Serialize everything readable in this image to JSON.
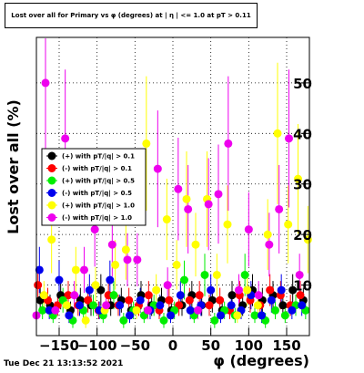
{
  "chart_data": {
    "type": "scatter",
    "title": "Lost over all for Primary vs φ (degrees) at | η | <= 1.0 at pT > 0.11",
    "xlabel": "φ (degrees)",
    "ylabel": "Lost over all (%)",
    "xlim": [
      -180,
      180
    ],
    "ylim": [
      0,
      59
    ],
    "x_ticks": [
      -150,
      -100,
      -50,
      0,
      50,
      100,
      150
    ],
    "x_tick_labels": [
      "−150",
      "−100",
      "−50",
      "0",
      "50",
      "100",
      "150"
    ],
    "y_ticks": [
      10,
      20,
      30,
      40,
      50
    ],
    "y_tick_labels": [
      "10",
      "20",
      "30",
      "40",
      "50"
    ],
    "grid": true,
    "legend_position": "left-middle",
    "series": [
      {
        "name": "(+) with pT/|q| > 0.1",
        "color": "#000000",
        "x": [
          -175,
          -162,
          -148,
          -135,
          -122,
          -108,
          -95,
          -82,
          -68,
          -55,
          -42,
          -28,
          -15,
          -2,
          12,
          25,
          38,
          52,
          65,
          78,
          92,
          105,
          118,
          132,
          145,
          158,
          172
        ],
        "y": [
          7,
          6,
          8,
          5,
          7,
          6,
          9,
          6,
          7,
          5,
          8,
          6,
          7,
          5,
          6,
          8,
          6,
          7,
          5,
          8,
          6,
          9,
          7,
          8,
          6,
          9,
          7
        ]
      },
      {
        "name": "(-) with pT/|q| > 0.1",
        "color": "#ff0000",
        "x": [
          -178,
          -165,
          -152,
          -138,
          -125,
          -112,
          -98,
          -85,
          -72,
          -58,
          -45,
          -32,
          -18,
          -5,
          8,
          22,
          35,
          48,
          62,
          75,
          88,
          102,
          115,
          128,
          142,
          155,
          168
        ],
        "y": [
          10,
          7,
          6,
          8,
          6,
          7,
          5,
          8,
          6,
          7,
          6,
          8,
          5,
          7,
          6,
          7,
          8,
          6,
          7,
          5,
          8,
          7,
          6,
          9,
          8,
          6,
          8
        ]
      },
      {
        "name": "(+) with pT/|q| > 0.5",
        "color": "#00ee00",
        "x": [
          -172,
          -158,
          -145,
          -132,
          -118,
          -105,
          -92,
          -78,
          -65,
          -52,
          -38,
          -25,
          -12,
          2,
          15,
          28,
          42,
          55,
          68,
          82,
          95,
          108,
          122,
          135,
          148,
          162,
          175
        ],
        "y": [
          5,
          4,
          7,
          3,
          5,
          6,
          4,
          8,
          3,
          5,
          4,
          6,
          3,
          5,
          11,
          4,
          12,
          3,
          5,
          4,
          12,
          4,
          3,
          5,
          4,
          6,
          5
        ]
      },
      {
        "name": "(-) with pT/|q| > 0.5",
        "color": "#0000ee",
        "x": [
          -176,
          -163,
          -150,
          -137,
          -123,
          -110,
          -97,
          -83,
          -70,
          -57,
          -43,
          -30,
          -17,
          -3,
          10,
          23,
          37,
          50,
          63,
          77,
          90,
          103,
          117,
          130,
          143,
          157,
          170
        ],
        "y": [
          13,
          5,
          11,
          4,
          6,
          9,
          5,
          11,
          6,
          4,
          7,
          5,
          6,
          4,
          8,
          5,
          6,
          9,
          4,
          6,
          5,
          8,
          4,
          7,
          9,
          5,
          6
        ]
      },
      {
        "name": "(+) with pT/|q| > 1.0",
        "color": "#ffff00",
        "x": [
          -170,
          -160,
          -140,
          -128,
          -115,
          -102,
          -90,
          -76,
          -62,
          -48,
          -35,
          -22,
          -8,
          5,
          18,
          30,
          45,
          58,
          72,
          85,
          98,
          112,
          125,
          138,
          152,
          165,
          178
        ],
        "y": [
          8,
          19,
          6,
          13,
          3,
          10,
          5,
          14,
          17,
          5,
          38,
          9,
          23,
          14,
          27,
          18,
          27,
          12,
          22,
          4,
          9,
          6,
          20,
          40,
          22,
          31,
          19
        ]
      },
      {
        "name": "(-) with pT/|q| > 1.0",
        "color": "#ee00ee",
        "x": [
          -180,
          -168,
          -155,
          -142,
          -130,
          -117,
          -103,
          -88,
          -80,
          -60,
          -47,
          -33,
          -20,
          -7,
          7,
          20,
          33,
          47,
          60,
          73,
          87,
          100,
          113,
          127,
          140,
          153,
          167
        ],
        "y": [
          4,
          50,
          5,
          39,
          8,
          13,
          21,
          6,
          18,
          15,
          15,
          5,
          33,
          10,
          29,
          25,
          5,
          26,
          28,
          38,
          9,
          21,
          8,
          18,
          25,
          39,
          12
        ]
      }
    ],
    "legend": [
      {
        "label": "(+) with pT/|q| > 0.1",
        "color": "#000000"
      },
      {
        "label": "(-) with pT/|q| > 0.1",
        "color": "#ff0000"
      },
      {
        "label": "(+) with pT/|q| > 0.5",
        "color": "#00ee00"
      },
      {
        "label": "(-) with pT/|q| > 0.5",
        "color": "#0000ee"
      },
      {
        "label": "(+) with pT/|q| > 1.0",
        "color": "#ffff00"
      },
      {
        "label": "(-) with pT/|q| > 1.0",
        "color": "#ee00ee"
      }
    ]
  },
  "footer": {
    "timestamp": "Tue Dec 21 13:13:52 2021"
  }
}
